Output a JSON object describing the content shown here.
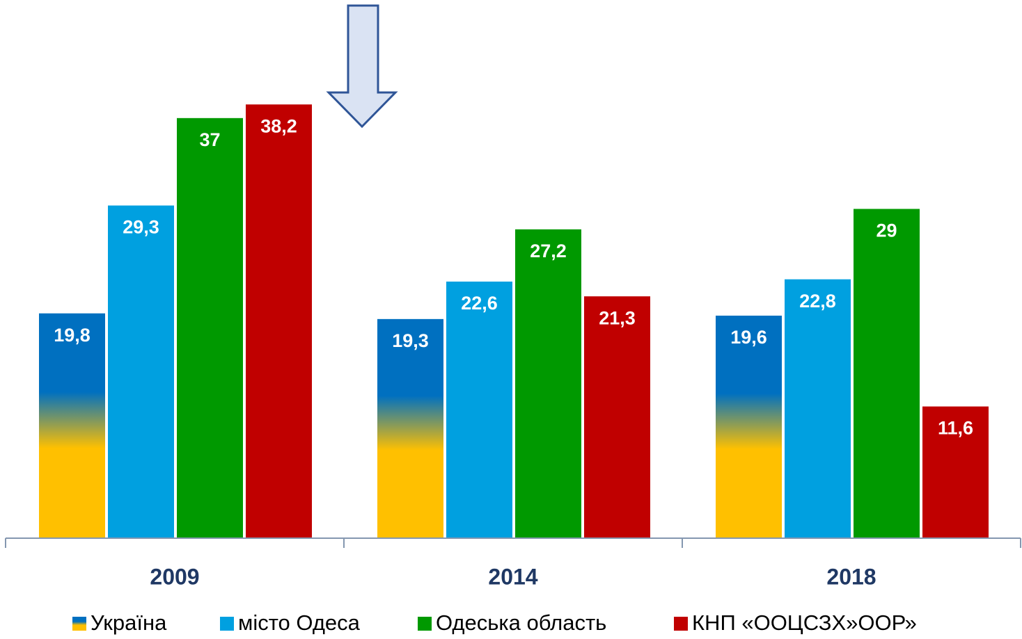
{
  "chart_data": {
    "type": "bar",
    "categories": [
      "2009",
      "2014",
      "2018"
    ],
    "series": [
      {
        "name": "Україна",
        "color": "#0070c0",
        "values": [
          19.8,
          19.3,
          19.6
        ],
        "value_labels": [
          "19,8",
          "19,3",
          "19,6"
        ]
      },
      {
        "name": "місто Одеса",
        "color": "#00a0e0",
        "values": [
          29.3,
          22.6,
          22.8
        ],
        "value_labels": [
          "29,3",
          "22,6",
          "22,8"
        ]
      },
      {
        "name": "Одеська область",
        "color": "#009900",
        "values": [
          37,
          27.2,
          29
        ],
        "value_labels": [
          "37",
          "27,2",
          "29"
        ]
      },
      {
        "name": "КНП «ООЦСЗХ»ООР»",
        "color": "#c00000",
        "values": [
          38.2,
          21.3,
          11.6
        ],
        "value_labels": [
          "38,2",
          "21,3",
          "11,6"
        ]
      }
    ],
    "ylim": [
      0,
      47.4
    ]
  }
}
